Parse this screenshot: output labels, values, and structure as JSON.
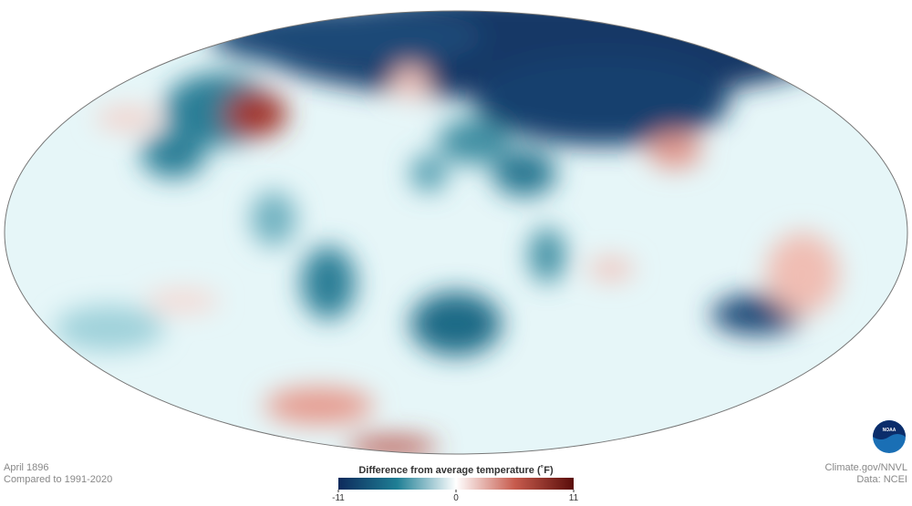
{
  "caption": {
    "date": "April 1896",
    "baseline": "Compared to 1991-2020"
  },
  "credits": {
    "site": "Climate.gov/NNVL",
    "source": "Data: NCEI",
    "logo": "NOAA"
  },
  "legend": {
    "title": "Difference from average temperature (˚F)",
    "lim": [
      -11,
      11
    ],
    "ticks": [
      -11,
      0,
      11
    ],
    "colors": [
      "#0d2a5c",
      "#1f7f95",
      "#ffffff",
      "#c75b4d",
      "#5a0d0a"
    ]
  }
}
